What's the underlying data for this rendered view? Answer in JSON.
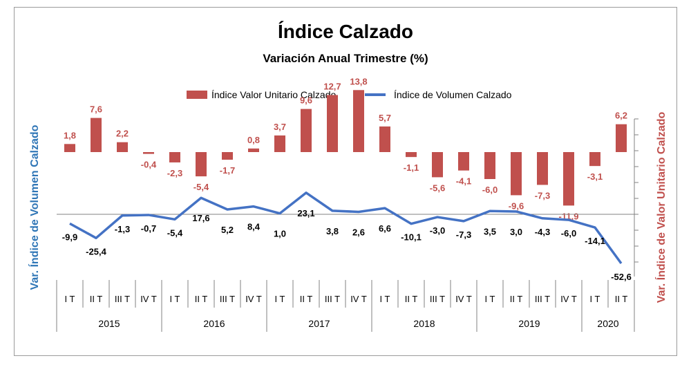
{
  "chart_data": {
    "type": "bar+line",
    "title": "Índice Calzado",
    "subtitle": "Variación Anual Trimestre  (%)",
    "y_left_label": "Var. Índice de Volumen Calzado",
    "y_right_label": "Var. Índice de Valor Unitario Calzado",
    "legend_position": "top-center",
    "quarters": [
      "I T",
      "II T",
      "III T",
      "IV T",
      "I T",
      "II T",
      "III T",
      "IV T",
      "I T",
      "II T",
      "III T",
      "IV T",
      "I T",
      "II T",
      "III T",
      "IV T",
      "I T",
      "II T",
      "III T",
      "IV T",
      "I T",
      "II T"
    ],
    "years": [
      {
        "label": "2015",
        "count": 4
      },
      {
        "label": "2016",
        "count": 4
      },
      {
        "label": "2017",
        "count": 4
      },
      {
        "label": "2018",
        "count": 4
      },
      {
        "label": "2019",
        "count": 4
      },
      {
        "label": "2020",
        "count": 2
      }
    ],
    "series": [
      {
        "name": "Índice Valor Unitario Calzado",
        "kind": "bar",
        "axis": "right",
        "color": "#c0504d",
        "values": [
          1.8,
          7.6,
          2.2,
          -0.4,
          -2.3,
          -5.4,
          -1.7,
          0.8,
          3.7,
          9.6,
          12.7,
          13.8,
          5.7,
          -1.1,
          -5.6,
          -4.1,
          -6.0,
          -9.6,
          -7.3,
          -11.9,
          -3.1,
          6.2
        ],
        "labels": [
          "1,8",
          "7,6",
          "2,2",
          "-0,4",
          "-2,3",
          "-5,4",
          "-1,7",
          "0,8",
          "3,7",
          "9,6",
          "12,7",
          "13,8",
          "5,7",
          "-1,1",
          "-5,6",
          "-4,1",
          "-6,0",
          "-9,6",
          "-7,3",
          "-11,9",
          "-3,1",
          "6,2"
        ]
      },
      {
        "name": "Índice de Volumen Calzado",
        "kind": "line",
        "axis": "left",
        "color": "#4472c4",
        "values": [
          -9.9,
          -25.4,
          -1.3,
          -0.7,
          -5.4,
          17.6,
          5.2,
          8.4,
          1.0,
          23.1,
          3.8,
          2.6,
          6.6,
          -10.1,
          -3.0,
          -7.3,
          3.5,
          3.0,
          -4.3,
          -6.0,
          -14.1,
          -52.6
        ],
        "labels": [
          "-9,9",
          "-25,4",
          "-1,3",
          "-0,7",
          "-5,4",
          "17,6",
          "5,2",
          "8,4",
          "1,0",
          "23,1",
          "3,8",
          "2,6",
          "6,6",
          "-10,1",
          "-3,0",
          "-7,3",
          "3,5",
          "3,0",
          "-4,3",
          "-6,0",
          "-14,1",
          "-52,6"
        ]
      }
    ]
  }
}
